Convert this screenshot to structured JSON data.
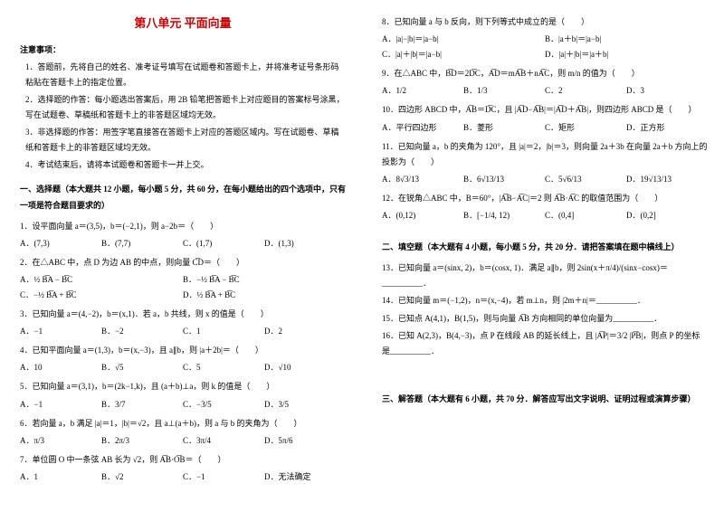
{
  "title": "第八单元  平面向量",
  "notice_head": "注意事项：",
  "notice": [
    "1．答题前，先将自己的姓名、准考证号填写在试题卷和答题卡上，并将准考证号条形码粘贴在答题卡上的指定位置。",
    "2．选择题的作答：每小题选出答案后，用 2B 铅笔把答题卡上对应题目的答案标号涂黑，写在试题卷、草稿纸和答题卡上的非答题区域均无效。",
    "3．非选择题的作答：用签字笔直接答在答题卡上对应的答题区域内。写在试题卷、草稿纸和答题卡上的非答题区域均无效。",
    "4．考试结束后，请将本试题卷和答题卡一并上交。"
  ],
  "sectionA": "一、选择题（本大题共 12 小题，每小题 5 分，共 60 分，在每小题给出的四个选项中，只有一项是符合题目要求的）",
  "q1": "1．设平面向量 a＝(3,5)，b＝(−2,1)，则 a−2b＝（　　）",
  "q1o": [
    "A．(7,3)",
    "B．(7,7)",
    "C．(1,7)",
    "D．(1,3)"
  ],
  "q2": "2．在△ABC 中，点 D 为边 AB 的中点，则向量 C͞D＝（　　）",
  "q2o": [
    "A．½ B͞A − B͞C",
    "B．−½ B͞A − B͞C",
    "C．−½ B͞A + B͞C",
    "D．½ B͞A + B͞C"
  ],
  "q3": "3．已知向量 a＝(4,−2)，b＝(x,1)．若 a，b 共线，则 x 的值是（　　）",
  "q3o": [
    "A．−1",
    "B．−2",
    "C．1",
    "D．2"
  ],
  "q4": "4．已知平面向量 a＝(1,3)，b＝(x,−3)，且 a∥b，则 |a＋2b|＝（　　）",
  "q4o": [
    "A．10",
    "B．√5",
    "C．5",
    "D．√10"
  ],
  "q5": "5．已知向量 a＝(3,1)，b＝(2k−1,k)，且 (a＋b)⊥a，则 k 的值是（　　）",
  "q5o": [
    "A．−1",
    "B．3/7",
    "C．−3/5",
    "D．3/5"
  ],
  "q6": "6．若向量 a，b 满足 |a|＝1，|b|＝√2，且 a⊥(a＋b)，则 a 与 b 的夹角为（　　）",
  "q6o": [
    "A．π/3",
    "B．2π/3",
    "C．3π/4",
    "D．5π/6"
  ],
  "q7": "7．单位圆 O 中一条弦 AB 长为 √2，则 A͞B·O͞B＝（　　）",
  "q7o": [
    "A．1",
    "B．√2",
    "C．−1",
    "D．无法确定"
  ],
  "q8": "8．已知向量 a 与 b 反向，则下列等式中成立的是（　　）",
  "q8o": [
    "A．|a|−|b|＝|a−b|",
    "B．|a＋b|＝|a−b|",
    "C．|a|＋|b|＝|a−b|",
    "D．|a|＋|b|＝|a＋b|"
  ],
  "q9": "9．在△ABC 中，B͞D＝2D͞C，A͞D＝mA͞B＋nA͞C，则 m/n 的值为（　　）",
  "q9o": [
    "A．1/2",
    "B．1/3",
    "C．2",
    "D．3"
  ],
  "q10": "10．四边形 ABCD 中，A͞B＝D͞C，且 |A͞D−A͞B|＝|A͞D＋A͞B|，则四边形 ABCD 是（　　）",
  "q10o": [
    "A．平行四边形",
    "B．菱形",
    "C．矩形",
    "D．正方形"
  ],
  "q11": "11．已知向量 a，b 的夹角为 120°，且 |a|＝2，|b|＝3，则向量 2a＋3b 在向量 2a＋b 方向上的投影为（　　）",
  "q11o": [
    "A．8√3/13",
    "B．6√13/13",
    "C．5√6/13",
    "D．19√13/13"
  ],
  "q12": "12．在锐角△ABC 中，B＝60°，|A͞B−A͞C|＝2 则 A͞B·A͞C 的取值范围为（　　）",
  "q12o": [
    "A．(0,12)",
    "B．[−1/4, 12)",
    "C．(0,4]",
    "D．(0,2]"
  ],
  "sectionB": "二、填空题（本大题有 4 小题，每小题 5 分，共 20 分．请把答案填在题中横线上）",
  "q13": "13．已知向量 a＝(sinx, 2)，b＝(cosx, 1)．满足 a∥b，则 2sin(x＋π/4)/(sinx−cosx)＝__________．",
  "q14": "14．已知向量 m＝(−1,2)，n＝(x,−4)，若 m⊥n，则 |2m＋n|＝__________．",
  "q15": "15．已知点 A(4,1)，B(1,5)，则与向量 A͞B 方向相同的单位向量为__________．",
  "q16": "16．已知 A(2,3)，B(4,−3)，点 P 在线段 AB 的延长线上，且 |A͞P|＝3/2 |P͞B|，则点 P 的坐标是__________．",
  "sectionC": "三、解答题（本大题有 6 小题，共 70 分．解答应写出文字说明、证明过程或演算步骤）",
  "colors": {
    "title": "#cc0000",
    "text": "#000000",
    "bg": "#ffffff"
  }
}
